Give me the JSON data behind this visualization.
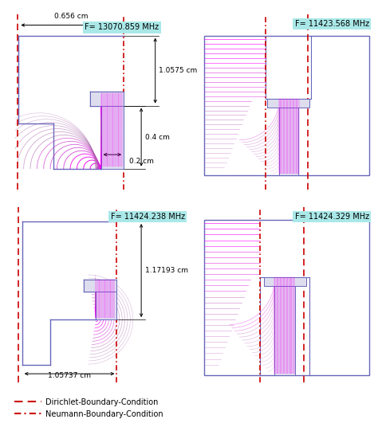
{
  "background_color": "#ffffff",
  "freq_labels": [
    "F= 13070.859 MHz",
    "F= 11423.568 MHz",
    "F= 11424.238 MHz",
    "F= 11424.329 MHz"
  ],
  "freq_label_bg": "#aae8e8",
  "annotation_fontsize": 6.5,
  "freq_fontsize": 7.0,
  "legend_fontsize": 7.0,
  "dims": {
    "top_width": "0.656 cm",
    "height1": "1.0575 cm",
    "height2": "0.4 cm",
    "width2": "0.2 cm",
    "height3": "1.17193 cm",
    "bottom_width": "1.05737 cm"
  },
  "red": "#cc0000",
  "blue": "#6666bb",
  "magenta_dark": "#cc00cc",
  "magenta_light": "#ee66ee"
}
